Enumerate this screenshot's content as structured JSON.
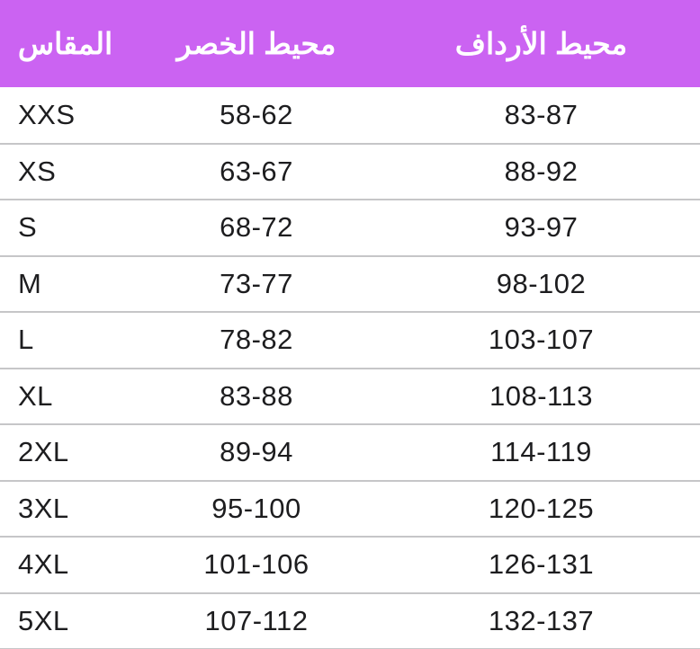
{
  "table": {
    "title": "size-chart",
    "columns": [
      {
        "key": "size",
        "label": "المقاس"
      },
      {
        "key": "waist",
        "label": "محيط الخصر"
      },
      {
        "key": "hips",
        "label": "محيط الأرداف"
      }
    ],
    "rows": [
      {
        "size": "XXS",
        "waist": "58-62",
        "hips": "83-87"
      },
      {
        "size": "XS",
        "waist": "63-67",
        "hips": "88-92"
      },
      {
        "size": "S",
        "waist": "68-72",
        "hips": "93-97"
      },
      {
        "size": "M",
        "waist": "73-77",
        "hips": "98-102"
      },
      {
        "size": "L",
        "waist": "78-82",
        "hips": "103-107"
      },
      {
        "size": "XL",
        "waist": "83-88",
        "hips": "108-113"
      },
      {
        "size": "2XL",
        "waist": "89-94",
        "hips": "114-119"
      },
      {
        "size": "3XL",
        "waist": "95-100",
        "hips": "120-125"
      },
      {
        "size": "4XL",
        "waist": "101-106",
        "hips": "126-131"
      },
      {
        "size": "5XL",
        "waist": "107-112",
        "hips": "132-137"
      }
    ]
  },
  "colors": {
    "header_bg": "#CB63F2",
    "header_text": "#FFFFFF",
    "row_text": "#1D1D1F",
    "separator": "#C6C6C8",
    "bg": "#FFFFFF"
  }
}
